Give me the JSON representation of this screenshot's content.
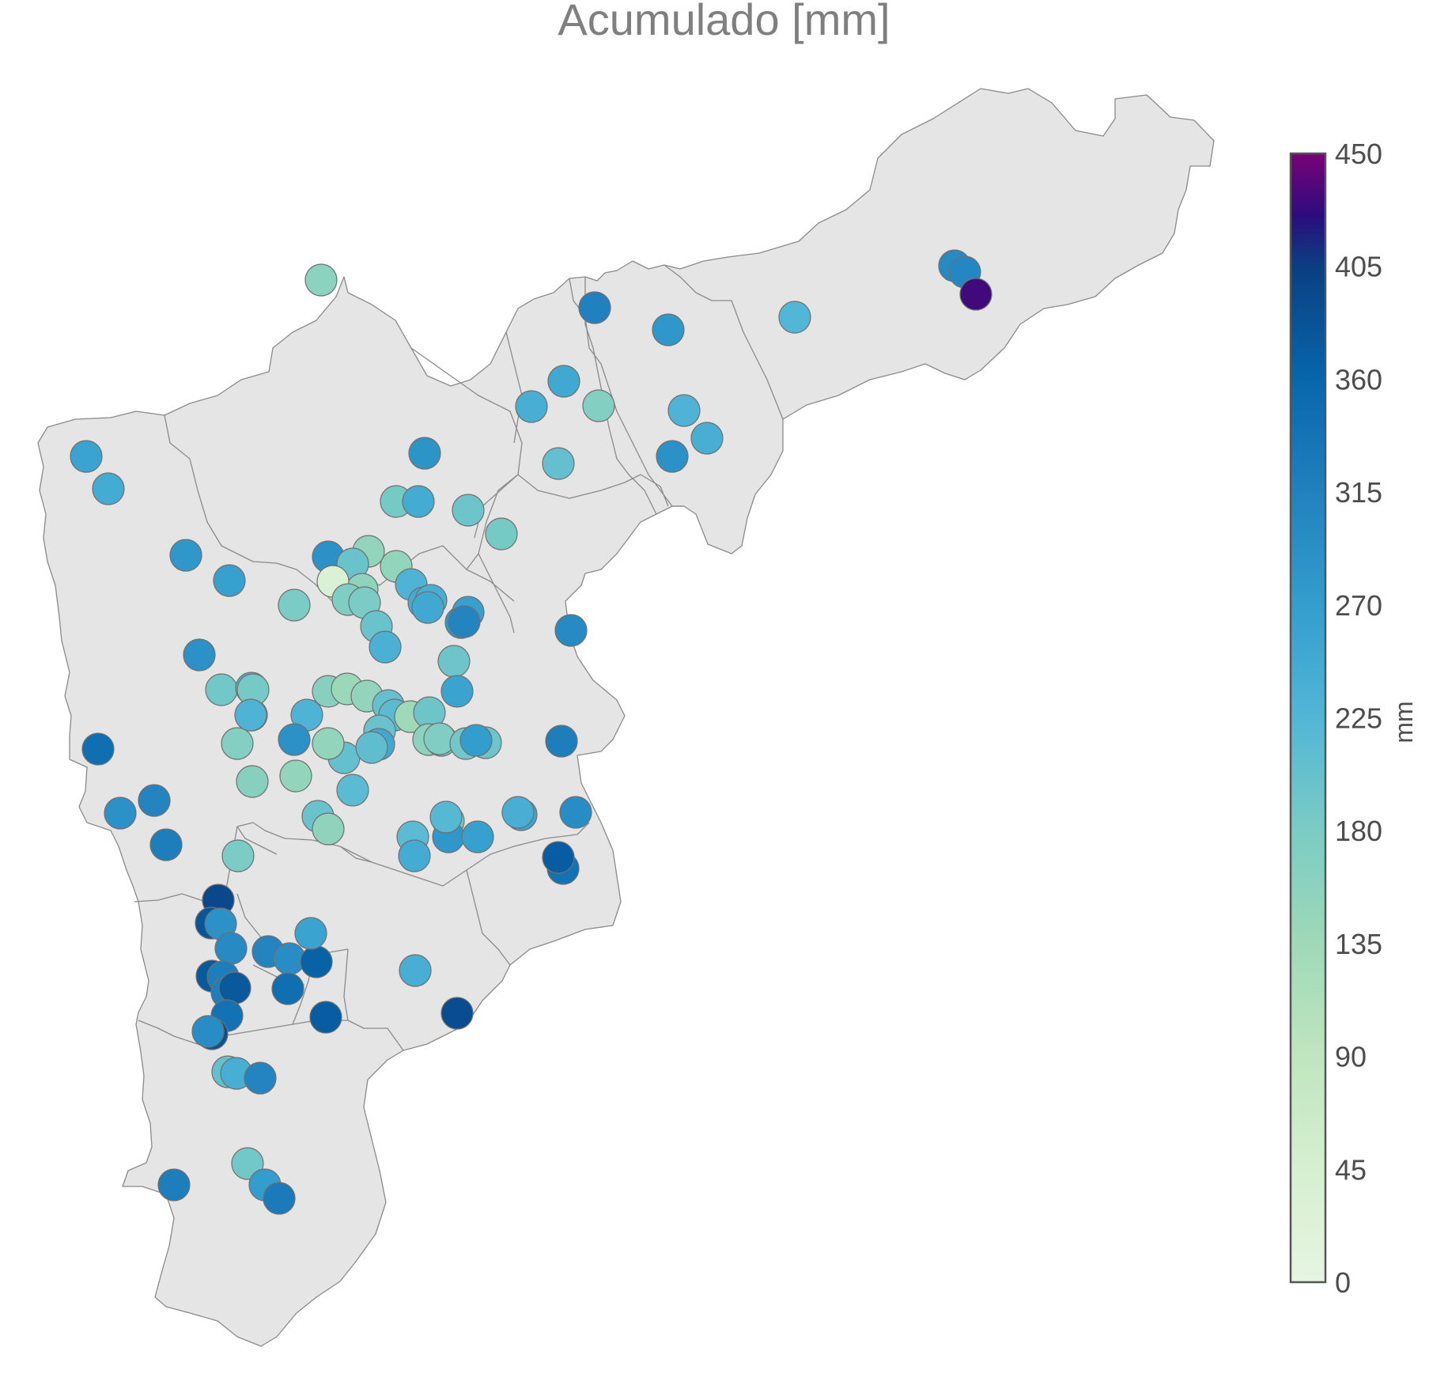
{
  "title": "Acumulado [mm]",
  "colorbar": {
    "label": "mm",
    "min": 0,
    "max": 450,
    "ticks": [
      "0",
      "45",
      "90",
      "135",
      "180",
      "225",
      "270",
      "315",
      "360",
      "405",
      "450"
    ],
    "stops": [
      {
        "value": 0,
        "color": "#e6f5e1"
      },
      {
        "value": 45,
        "color": "#d6efd0"
      },
      {
        "value": 90,
        "color": "#bfe6bf"
      },
      {
        "value": 135,
        "color": "#9fd9b8"
      },
      {
        "value": 180,
        "color": "#7bccc4"
      },
      {
        "value": 225,
        "color": "#52b6d6"
      },
      {
        "value": 270,
        "color": "#339dcd"
      },
      {
        "value": 315,
        "color": "#2181be"
      },
      {
        "value": 360,
        "color": "#0866ab"
      },
      {
        "value": 405,
        "color": "#0a3f82"
      },
      {
        "value": 425,
        "color": "#2a0d7d"
      },
      {
        "value": 450,
        "color": "#7a0177"
      }
    ]
  },
  "map_colors": {
    "land": "#e5e5e5",
    "border": "#8a8a8a",
    "station_outline": "#6f6f6f"
  },
  "stations_mm": [
    {
      "v": 300
    },
    {
      "v": 306
    },
    {
      "v": 432
    },
    {
      "v": 225
    },
    {
      "v": 280
    },
    {
      "v": 315
    },
    {
      "v": 250
    },
    {
      "v": 240
    },
    {
      "v": 170
    },
    {
      "v": 230
    },
    {
      "v": 240
    },
    {
      "v": 290
    },
    {
      "v": 205
    },
    {
      "v": 160
    },
    {
      "v": 285
    },
    {
      "v": 260
    },
    {
      "v": 245
    },
    {
      "v": 185
    },
    {
      "v": 245
    },
    {
      "v": 195
    },
    {
      "v": 185
    },
    {
      "v": 280
    },
    {
      "v": 290
    },
    {
      "v": 265
    },
    {
      "v": 150
    },
    {
      "v": 200
    },
    {
      "v": 155
    },
    {
      "v": 30
    },
    {
      "v": 175
    },
    {
      "v": 180
    },
    {
      "v": 150
    },
    {
      "v": 230
    },
    {
      "v": 245
    },
    {
      "v": 240
    },
    {
      "v": 280
    },
    {
      "v": 300
    },
    {
      "v": 265
    },
    {
      "v": 250
    },
    {
      "v": 310
    },
    {
      "v": 180
    },
    {
      "v": 200
    },
    {
      "v": 235
    },
    {
      "v": 195
    },
    {
      "v": 290
    },
    {
      "v": 165
    },
    {
      "v": 140
    },
    {
      "v": 150
    },
    {
      "v": 190
    },
    {
      "v": 205
    },
    {
      "v": 215
    },
    {
      "v": 135
    },
    {
      "v": 195
    },
    {
      "v": 230
    },
    {
      "v": 260
    },
    {
      "v": 200
    },
    {
      "v": 160
    },
    {
      "v": 230
    },
    {
      "v": 210
    },
    {
      "v": 205
    },
    {
      "v": 185
    },
    {
      "v": 185
    },
    {
      "v": 175
    },
    {
      "v": 150
    },
    {
      "v": 170
    },
    {
      "v": 230
    },
    {
      "v": 290
    },
    {
      "v": 250
    },
    {
      "v": 190
    },
    {
      "v": 195
    },
    {
      "v": 270
    },
    {
      "v": 320
    },
    {
      "v": 345
    },
    {
      "v": 210
    },
    {
      "v": 310
    },
    {
      "v": 290
    },
    {
      "v": 320
    },
    {
      "v": 200
    },
    {
      "v": 190
    },
    {
      "v": 280
    },
    {
      "v": 340
    },
    {
      "v": 215
    },
    {
      "v": 245
    },
    {
      "v": 180
    },
    {
      "v": 165
    },
    {
      "v": 150
    },
    {
      "v": 215
    },
    {
      "v": 155
    },
    {
      "v": 260
    },
    {
      "v": 265
    },
    {
      "v": 220
    },
    {
      "v": 240
    },
    {
      "v": 295
    },
    {
      "v": 370
    },
    {
      "v": 395
    },
    {
      "v": 380
    },
    {
      "v": 290
    },
    {
      "v": 300
    },
    {
      "v": 310
    },
    {
      "v": 295
    },
    {
      "v": 365
    },
    {
      "v": 345
    },
    {
      "v": 375
    },
    {
      "v": 320
    },
    {
      "v": 320
    },
    {
      "v": 375
    },
    {
      "v": 370
    },
    {
      "v": 340
    },
    {
      "v": 385
    },
    {
      "v": 295
    },
    {
      "v": 260
    },
    {
      "v": 240
    },
    {
      "v": 205
    },
    {
      "v": 390
    },
    {
      "v": 240
    },
    {
      "v": 310
    },
    {
      "v": 190
    },
    {
      "v": 320
    },
    {
      "v": 270
    },
    {
      "v": 325
    }
  ]
}
